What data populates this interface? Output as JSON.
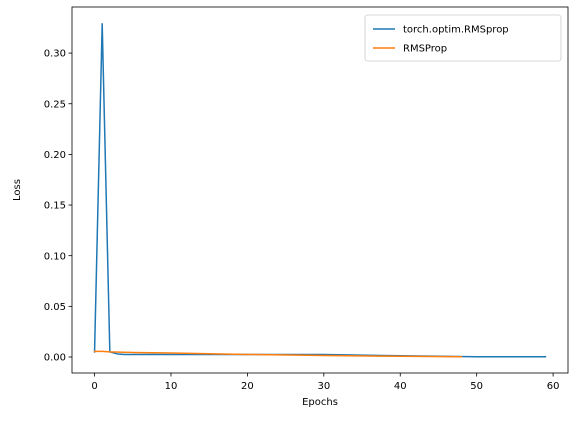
{
  "chart_data": {
    "type": "line",
    "title": "",
    "xlabel": "Epochs",
    "ylabel": "Loss",
    "xlim": [
      -2.95,
      61.95
    ],
    "ylim": [
      -0.0158,
      0.3455
    ],
    "xticks": [
      0,
      10,
      20,
      30,
      40,
      50,
      60
    ],
    "xtick_labels": [
      "0",
      "10",
      "20",
      "30",
      "40",
      "50",
      "60"
    ],
    "yticks": [
      0.0,
      0.05,
      0.1,
      0.15,
      0.2,
      0.25,
      0.3
    ],
    "ytick_labels": [
      "0.00",
      "0.05",
      "0.10",
      "0.15",
      "0.20",
      "0.25",
      "0.30"
    ],
    "grid": false,
    "legend_position": "top-right",
    "series": [
      {
        "name": "torch.optim.RMSprop",
        "color": "#1f77b4",
        "x": [
          0,
          1,
          2,
          3,
          4,
          5,
          10,
          20,
          30,
          40,
          50,
          59
        ],
        "y": [
          0.005,
          0.329,
          0.005,
          0.003,
          0.0025,
          0.0025,
          0.0025,
          0.0025,
          0.0025,
          0.0012,
          0.0003,
          0.0002
        ]
      },
      {
        "name": "RMSProp",
        "color": "#ff7f0e",
        "x": [
          0,
          1,
          2,
          5,
          10,
          20,
          30,
          40,
          48
        ],
        "y": [
          0.0055,
          0.0055,
          0.005,
          0.0045,
          0.004,
          0.0025,
          0.0015,
          0.0007,
          0.0003
        ]
      }
    ]
  }
}
